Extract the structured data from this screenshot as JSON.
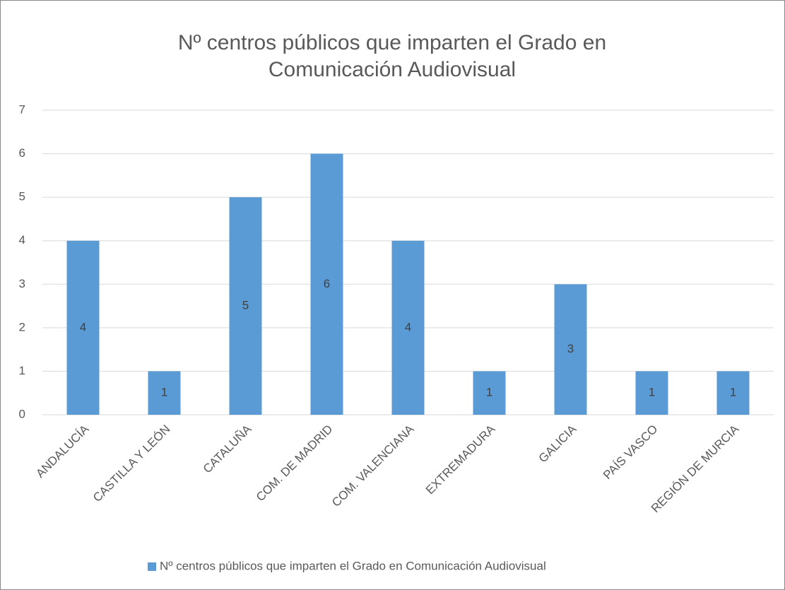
{
  "chart_data": {
    "type": "bar",
    "title": "Nº centros públicos que imparten el Grado en Comunicación Audiovisual",
    "categories": [
      "ANDALUCÍA",
      "CASTILLA Y LEÓN",
      "CATALUÑA",
      "COM. DE MADRID",
      "COM. VALENCIANA",
      "EXTREMADURA",
      "GALICIA",
      "PAÍS VASCO",
      "REGIÓN DE MURCIA"
    ],
    "series": [
      {
        "name": "Nº centros públicos que imparten el Grado en Comunicación Audiovisual",
        "color": "#5b9bd5",
        "values": [
          4,
          1,
          5,
          6,
          4,
          1,
          3,
          1,
          1
        ]
      }
    ],
    "ylim": [
      0,
      7
    ],
    "yticks": [
      0,
      1,
      2,
      3,
      4,
      5,
      6,
      7
    ],
    "grid": true,
    "legend": "bottom",
    "data_labels": true
  }
}
